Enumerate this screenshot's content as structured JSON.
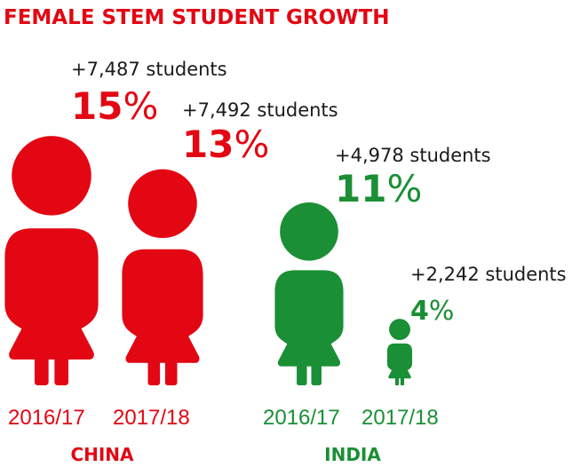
{
  "chart_data": {
    "type": "pictograph",
    "title": "FEMALE STEM STUDENT GROWTH",
    "groups": [
      {
        "name": "CHINA",
        "color": "#e30613",
        "items": [
          {
            "year": "2016/17",
            "percent": 15,
            "percent_label": "15",
            "students": "+7,487 students"
          },
          {
            "year": "2017/18",
            "percent": 13,
            "percent_label": "13",
            "students": "+7,492 students"
          }
        ]
      },
      {
        "name": "INDIA",
        "color": "#1a8f35",
        "items": [
          {
            "year": "2016/17",
            "percent": 11,
            "percent_label": "11",
            "students": "+4,978 students"
          },
          {
            "year": "2017/18",
            "percent": 4,
            "percent_label": "4",
            "students": "+2,242 students"
          }
        ]
      }
    ],
    "percent_sign": "%"
  }
}
